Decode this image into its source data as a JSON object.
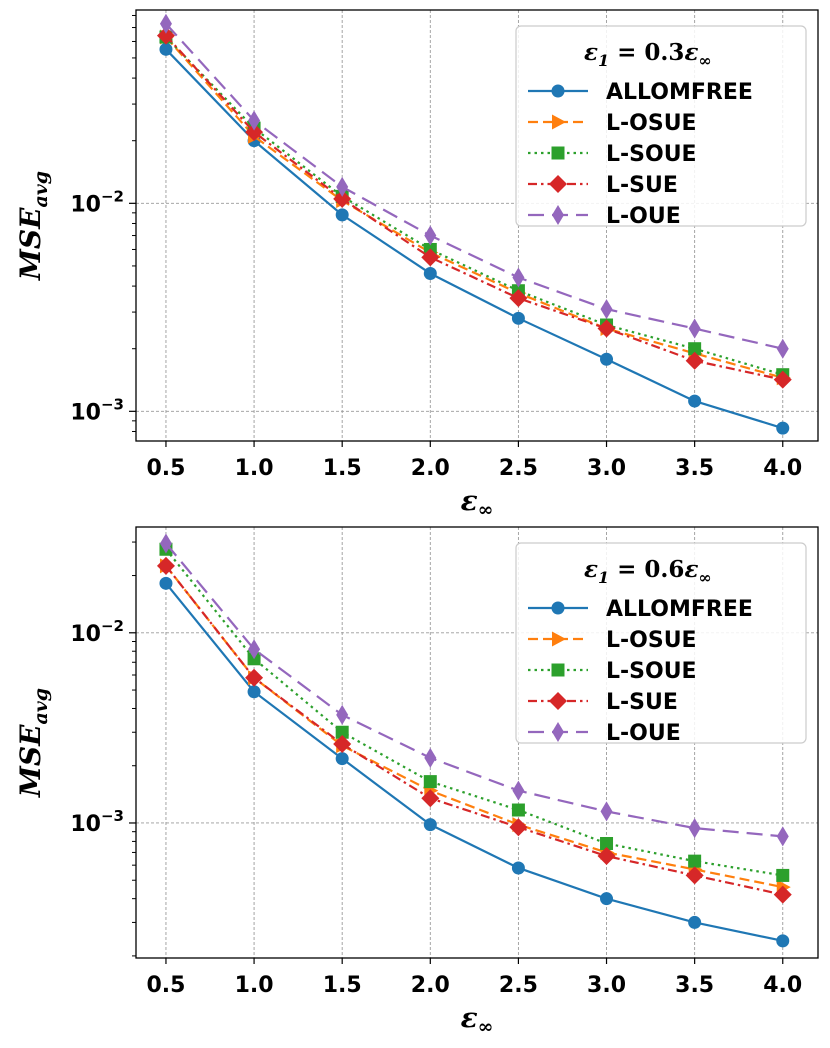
{
  "chart_data": [
    {
      "type": "line",
      "x": [
        0.5,
        1.0,
        1.5,
        2.0,
        2.5,
        3.0,
        3.5,
        4.0
      ],
      "xlabel": "ε∞",
      "ylabel": "MSE_avg",
      "yscale": "log",
      "ylim": [
        0.00072,
        0.085
      ],
      "xlim": [
        0.33,
        4.2
      ],
      "x_ticks": [
        "0.5",
        "1.0",
        "1.5",
        "2.0",
        "2.5",
        "3.0",
        "3.5",
        "4.0"
      ],
      "y_ticks": [
        {
          "value": 0.01,
          "label": "10^-2"
        },
        {
          "value": 0.001,
          "label": "10^-3"
        }
      ],
      "grid": true,
      "legend_title": "ε1 = 0.3ε∞",
      "legend_location": "upper right",
      "series": [
        {
          "name": "ALLOMFREE",
          "color": "#1f77b4",
          "linestyle": "solid",
          "marker": "circle",
          "values": [
            0.055,
            0.02,
            0.0088,
            0.0046,
            0.0028,
            0.00178,
            0.00112,
            0.00083
          ]
        },
        {
          "name": "L-OSUE",
          "color": "#ff7f0e",
          "linestyle": "dashed",
          "marker": "triangle-right",
          "values": [
            0.063,
            0.021,
            0.0103,
            0.0058,
            0.0037,
            0.0025,
            0.0019,
            0.00145
          ]
        },
        {
          "name": "L-SOUE",
          "color": "#2ca02c",
          "linestyle": "dotted",
          "marker": "square",
          "values": [
            0.063,
            0.023,
            0.0108,
            0.006,
            0.0038,
            0.0026,
            0.002,
            0.0015
          ]
        },
        {
          "name": "L-SUE",
          "color": "#d62728",
          "linestyle": "dashdot",
          "marker": "diamond",
          "values": [
            0.064,
            0.022,
            0.0105,
            0.0055,
            0.0035,
            0.0025,
            0.00175,
            0.00142
          ]
        },
        {
          "name": "L-OUE",
          "color": "#9467bd",
          "linestyle": "longdash",
          "marker": "thin-diamond",
          "values": [
            0.073,
            0.025,
            0.012,
            0.007,
            0.0044,
            0.0031,
            0.0025,
            0.002
          ]
        }
      ]
    },
    {
      "type": "line",
      "x": [
        0.5,
        1.0,
        1.5,
        2.0,
        2.5,
        3.0,
        3.5,
        4.0
      ],
      "xlabel": "ε∞",
      "ylabel": "MSE_avg",
      "yscale": "log",
      "ylim": [
        0.000195,
        0.036
      ],
      "xlim": [
        0.33,
        4.2
      ],
      "x_ticks": [
        "0.5",
        "1.0",
        "1.5",
        "2.0",
        "2.5",
        "3.0",
        "3.5",
        "4.0"
      ],
      "y_ticks": [
        {
          "value": 0.01,
          "label": "10^-2"
        },
        {
          "value": 0.001,
          "label": "10^-3"
        }
      ],
      "grid": true,
      "legend_title": "ε1 = 0.6ε∞",
      "legend_location": "upper right",
      "series": [
        {
          "name": "ALLOMFREE",
          "color": "#1f77b4",
          "linestyle": "solid",
          "marker": "circle",
          "values": [
            0.0182,
            0.0049,
            0.00218,
            0.00098,
            0.00058,
            0.0004,
            0.0003,
            0.00024
          ]
        },
        {
          "name": "L-OSUE",
          "color": "#ff7f0e",
          "linestyle": "dashed",
          "marker": "triangle-right",
          "values": [
            0.0225,
            0.0058,
            0.00255,
            0.00148,
            0.00098,
            0.0007,
            0.00057,
            0.00046
          ]
        },
        {
          "name": "L-SOUE",
          "color": "#2ca02c",
          "linestyle": "dotted",
          "marker": "square",
          "values": [
            0.0275,
            0.0073,
            0.003,
            0.00165,
            0.00117,
            0.00078,
            0.00063,
            0.00053
          ]
        },
        {
          "name": "L-SUE",
          "color": "#d62728",
          "linestyle": "dashdot",
          "marker": "diamond",
          "values": [
            0.0225,
            0.0058,
            0.0026,
            0.00135,
            0.00095,
            0.00067,
            0.00053,
            0.00042
          ]
        },
        {
          "name": "L-OUE",
          "color": "#9467bd",
          "linestyle": "longdash",
          "marker": "thin-diamond",
          "values": [
            0.0295,
            0.0082,
            0.0037,
            0.0022,
            0.00148,
            0.00115,
            0.00094,
            0.00085
          ]
        }
      ]
    }
  ]
}
